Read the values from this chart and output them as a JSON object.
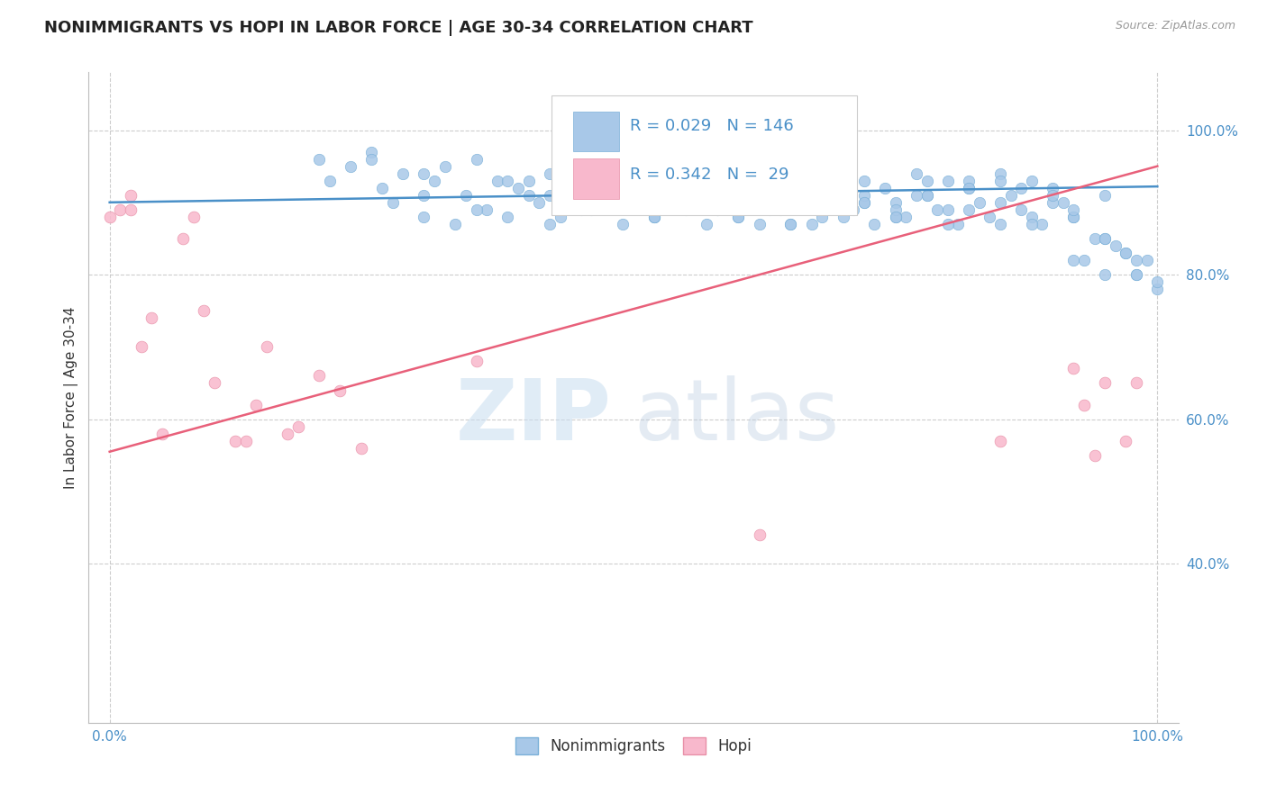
{
  "title": "NONIMMIGRANTS VS HOPI IN LABOR FORCE | AGE 30-34 CORRELATION CHART",
  "source": "Source: ZipAtlas.com",
  "ylabel": "In Labor Force | Age 30-34",
  "xlim": [
    -0.02,
    1.02
  ],
  "ylim": [
    0.18,
    1.08
  ],
  "xticks": [
    0.0,
    1.0
  ],
  "yticks": [
    0.4,
    0.6,
    0.8,
    1.0
  ],
  "blue_color": "#a8c8e8",
  "blue_edge_color": "#7ab0d8",
  "pink_color": "#f8b8cc",
  "pink_edge_color": "#e890a8",
  "blue_line_color": "#4a90c8",
  "pink_line_color": "#e8607a",
  "R_blue": 0.029,
  "N_blue": 146,
  "R_pink": 0.342,
  "N_pink": 29,
  "blue_trend_x": [
    0.0,
    1.0
  ],
  "blue_trend_y": [
    0.9,
    0.922
  ],
  "pink_trend_x": [
    0.0,
    1.0
  ],
  "pink_trend_y": [
    0.555,
    0.95
  ],
  "watermark_zip": "ZIP",
  "watermark_atlas": "atlas",
  "background_color": "#ffffff",
  "title_fontsize": 13,
  "axis_label_fontsize": 11,
  "tick_fontsize": 11,
  "legend_label_blue": "Nonimmigrants",
  "legend_label_pink": "Hopi",
  "blue_scatter_x": [
    0.2,
    0.21,
    0.23,
    0.25,
    0.26,
    0.27,
    0.28,
    0.3,
    0.31,
    0.32,
    0.33,
    0.34,
    0.35,
    0.36,
    0.37,
    0.38,
    0.39,
    0.4,
    0.41,
    0.42,
    0.43,
    0.44,
    0.45,
    0.46,
    0.47,
    0.48,
    0.49,
    0.5,
    0.51,
    0.52,
    0.53,
    0.54,
    0.55,
    0.56,
    0.57,
    0.58,
    0.59,
    0.6,
    0.61,
    0.62,
    0.63,
    0.64,
    0.65,
    0.66,
    0.67,
    0.68,
    0.69,
    0.7,
    0.71,
    0.72,
    0.73,
    0.74,
    0.75,
    0.76,
    0.77,
    0.78,
    0.79,
    0.8,
    0.81,
    0.82,
    0.83,
    0.84,
    0.85,
    0.86,
    0.87,
    0.88,
    0.89,
    0.9,
    0.91,
    0.92,
    0.93,
    0.94,
    0.95,
    0.96,
    0.97,
    0.98,
    0.99,
    1.0,
    0.55,
    0.57,
    0.6,
    0.62,
    0.64,
    0.65,
    0.67,
    0.7,
    0.72,
    0.75,
    0.77,
    0.8,
    0.82,
    0.85,
    0.87,
    0.9,
    0.92,
    0.95,
    0.97,
    1.0,
    0.4,
    0.42,
    0.45,
    0.48,
    0.5,
    0.52,
    0.55,
    0.58,
    0.6,
    0.62,
    0.65,
    0.68,
    0.7,
    0.72,
    0.75,
    0.78,
    0.8,
    0.82,
    0.85,
    0.88,
    0.9,
    0.92,
    0.95,
    0.98,
    0.3,
    0.35,
    0.38,
    0.42,
    0.45,
    0.48,
    0.52,
    0.55,
    0.58,
    0.62,
    0.65,
    0.68,
    0.72,
    0.75,
    0.78,
    0.82,
    0.85,
    0.88,
    0.92,
    0.95,
    0.98,
    0.25,
    0.3
  ],
  "blue_scatter_y": [
    0.96,
    0.93,
    0.95,
    0.97,
    0.92,
    0.9,
    0.94,
    0.88,
    0.93,
    0.95,
    0.87,
    0.91,
    0.96,
    0.89,
    0.93,
    0.88,
    0.92,
    0.91,
    0.9,
    0.94,
    0.88,
    0.92,
    0.95,
    0.89,
    0.91,
    0.93,
    0.87,
    0.92,
    0.9,
    0.88,
    0.94,
    0.91,
    0.89,
    0.93,
    0.87,
    0.92,
    0.9,
    0.88,
    0.94,
    0.91,
    0.89,
    0.93,
    0.87,
    0.92,
    0.9,
    0.88,
    0.94,
    0.91,
    0.89,
    0.93,
    0.87,
    0.92,
    0.9,
    0.88,
    0.94,
    0.91,
    0.89,
    0.93,
    0.87,
    0.92,
    0.9,
    0.88,
    0.94,
    0.91,
    0.89,
    0.93,
    0.87,
    0.92,
    0.9,
    0.88,
    0.82,
    0.85,
    0.8,
    0.84,
    0.83,
    0.8,
    0.82,
    0.78,
    0.92,
    0.9,
    0.88,
    0.91,
    0.89,
    0.93,
    0.87,
    0.92,
    0.9,
    0.88,
    0.91,
    0.89,
    0.93,
    0.87,
    0.92,
    0.9,
    0.88,
    0.91,
    0.83,
    0.79,
    0.93,
    0.91,
    0.89,
    0.92,
    0.9,
    0.88,
    0.91,
    0.89,
    0.93,
    0.87,
    0.92,
    0.9,
    0.88,
    0.91,
    0.89,
    0.93,
    0.87,
    0.92,
    0.9,
    0.88,
    0.91,
    0.89,
    0.85,
    0.82,
    0.91,
    0.89,
    0.93,
    0.87,
    0.92,
    0.9,
    0.88,
    0.91,
    0.89,
    0.93,
    0.87,
    0.92,
    0.9,
    0.88,
    0.91,
    0.89,
    0.93,
    0.87,
    0.82,
    0.85,
    0.8,
    0.96,
    0.94
  ],
  "pink_scatter_x": [
    0.0,
    0.01,
    0.02,
    0.02,
    0.03,
    0.04,
    0.05,
    0.07,
    0.08,
    0.09,
    0.1,
    0.12,
    0.13,
    0.14,
    0.15,
    0.17,
    0.18,
    0.2,
    0.22,
    0.24,
    0.35,
    0.62,
    0.85,
    0.92,
    0.93,
    0.94,
    0.95,
    0.97,
    0.98
  ],
  "pink_scatter_y": [
    0.88,
    0.89,
    0.91,
    0.89,
    0.7,
    0.74,
    0.58,
    0.85,
    0.88,
    0.75,
    0.65,
    0.57,
    0.57,
    0.62,
    0.7,
    0.58,
    0.59,
    0.66,
    0.64,
    0.56,
    0.68,
    0.44,
    0.57,
    0.67,
    0.62,
    0.55,
    0.65,
    0.57,
    0.65
  ]
}
